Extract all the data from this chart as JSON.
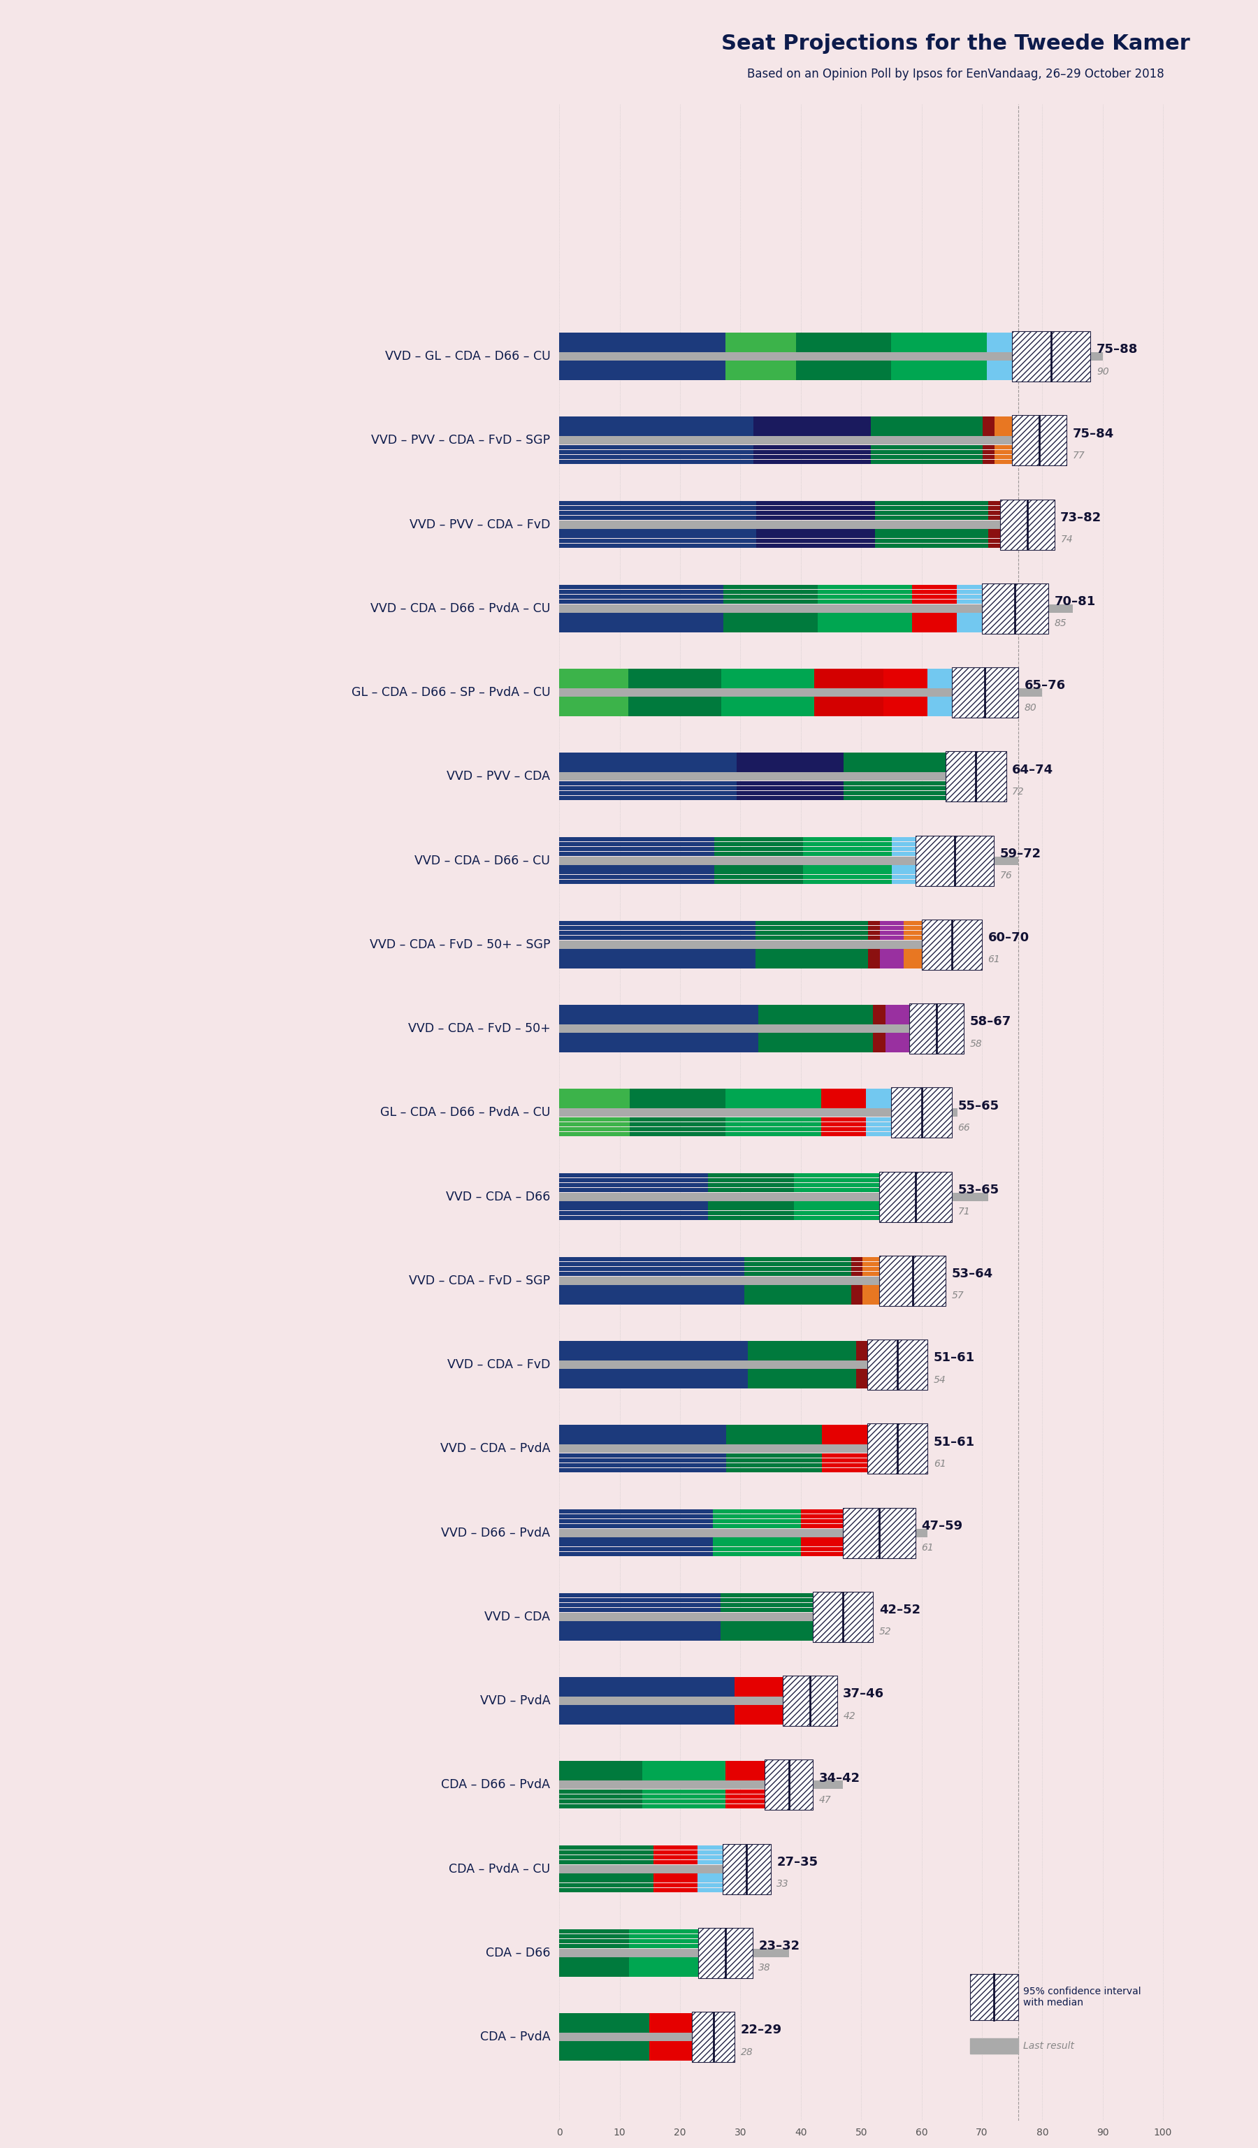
{
  "title": "Seat Projections for the Tweede Kamer",
  "subtitle": "Based on an Opinion Poll by Ipsos for EenVandaag, 26–29 October 2018",
  "background_color": "#f5e6e8",
  "coalitions": [
    {
      "label": "VVD – GL – CDA – D66 – CU",
      "underline": false,
      "low": 75,
      "high": 88,
      "last": 90,
      "parties": [
        "VVD",
        "GL",
        "CDA",
        "D66",
        "CU"
      ],
      "party_seats": [
        33,
        14,
        19,
        19,
        5
      ]
    },
    {
      "label": "VVD – PVV – CDA – FvD – SGP",
      "underline": false,
      "low": 75,
      "high": 84,
      "last": 77,
      "parties": [
        "VVD",
        "PVV",
        "CDA",
        "FvD",
        "SGP"
      ],
      "party_seats": [
        33,
        20,
        19,
        2,
        3
      ]
    },
    {
      "label": "VVD – PVV – CDA – FvD",
      "underline": false,
      "low": 73,
      "high": 82,
      "last": 74,
      "parties": [
        "VVD",
        "PVV",
        "CDA",
        "FvD"
      ],
      "party_seats": [
        33,
        20,
        19,
        2
      ]
    },
    {
      "label": "VVD – CDA – D66 – PvdA – CU",
      "underline": false,
      "low": 70,
      "high": 81,
      "last": 85,
      "parties": [
        "VVD",
        "CDA",
        "D66",
        "PvdA",
        "CU"
      ],
      "party_seats": [
        33,
        19,
        19,
        9,
        5
      ]
    },
    {
      "label": "GL – CDA – D66 – SP – PvdA – CU",
      "underline": false,
      "low": 65,
      "high": 76,
      "last": 80,
      "parties": [
        "GL",
        "CDA",
        "D66",
        "SP",
        "PvdA",
        "CU"
      ],
      "party_seats": [
        14,
        19,
        19,
        14,
        9,
        5
      ]
    },
    {
      "label": "VVD – PVV – CDA",
      "underline": false,
      "low": 64,
      "high": 74,
      "last": 72,
      "parties": [
        "VVD",
        "PVV",
        "CDA"
      ],
      "party_seats": [
        33,
        20,
        19
      ]
    },
    {
      "label": "VVD – CDA – D66 – CU",
      "underline": true,
      "low": 59,
      "high": 72,
      "last": 76,
      "parties": [
        "VVD",
        "CDA",
        "D66",
        "CU"
      ],
      "party_seats": [
        33,
        19,
        19,
        5
      ]
    },
    {
      "label": "VVD – CDA – FvD – 50+ – SGP",
      "underline": false,
      "low": 60,
      "high": 70,
      "last": 61,
      "parties": [
        "VVD",
        "CDA",
        "FvD",
        "50+",
        "SGP"
      ],
      "party_seats": [
        33,
        19,
        2,
        4,
        3
      ]
    },
    {
      "label": "VVD – CDA – FvD – 50+",
      "underline": false,
      "low": 58,
      "high": 67,
      "last": 58,
      "parties": [
        "VVD",
        "CDA",
        "FvD",
        "50+"
      ],
      "party_seats": [
        33,
        19,
        2,
        4
      ]
    },
    {
      "label": "GL – CDA – D66 – PvdA – CU",
      "underline": false,
      "low": 55,
      "high": 65,
      "last": 66,
      "parties": [
        "GL",
        "CDA",
        "D66",
        "PvdA",
        "CU"
      ],
      "party_seats": [
        14,
        19,
        19,
        9,
        5
      ]
    },
    {
      "label": "VVD – CDA – D66",
      "underline": false,
      "low": 53,
      "high": 65,
      "last": 71,
      "parties": [
        "VVD",
        "CDA",
        "D66"
      ],
      "party_seats": [
        33,
        19,
        19
      ]
    },
    {
      "label": "VVD – CDA – FvD – SGP",
      "underline": false,
      "low": 53,
      "high": 64,
      "last": 57,
      "parties": [
        "VVD",
        "CDA",
        "FvD",
        "SGP"
      ],
      "party_seats": [
        33,
        19,
        2,
        3
      ]
    },
    {
      "label": "VVD – CDA – FvD",
      "underline": false,
      "low": 51,
      "high": 61,
      "last": 54,
      "parties": [
        "VVD",
        "CDA",
        "FvD"
      ],
      "party_seats": [
        33,
        19,
        2
      ]
    },
    {
      "label": "VVD – CDA – PvdA",
      "underline": false,
      "low": 51,
      "high": 61,
      "last": 61,
      "parties": [
        "VVD",
        "CDA",
        "PvdA"
      ],
      "party_seats": [
        33,
        19,
        9
      ]
    },
    {
      "label": "VVD – D66 – PvdA",
      "underline": false,
      "low": 47,
      "high": 59,
      "last": 61,
      "parties": [
        "VVD",
        "D66",
        "PvdA"
      ],
      "party_seats": [
        33,
        19,
        9
      ]
    },
    {
      "label": "VVD – CDA",
      "underline": false,
      "low": 42,
      "high": 52,
      "last": 52,
      "parties": [
        "VVD",
        "CDA"
      ],
      "party_seats": [
        33,
        19
      ]
    },
    {
      "label": "VVD – PvdA",
      "underline": false,
      "low": 37,
      "high": 46,
      "last": 42,
      "parties": [
        "VVD",
        "PvdA"
      ],
      "party_seats": [
        33,
        9
      ]
    },
    {
      "label": "CDA – D66 – PvdA",
      "underline": false,
      "low": 34,
      "high": 42,
      "last": 47,
      "parties": [
        "CDA",
        "D66",
        "PvdA"
      ],
      "party_seats": [
        19,
        19,
        9
      ]
    },
    {
      "label": "CDA – PvdA – CU",
      "underline": false,
      "low": 27,
      "high": 35,
      "last": 33,
      "parties": [
        "CDA",
        "PvdA",
        "CU"
      ],
      "party_seats": [
        19,
        9,
        5
      ]
    },
    {
      "label": "CDA – D66",
      "underline": false,
      "low": 23,
      "high": 32,
      "last": 38,
      "parties": [
        "CDA",
        "D66"
      ],
      "party_seats": [
        19,
        19
      ]
    },
    {
      "label": "CDA – PvdA",
      "underline": false,
      "low": 22,
      "high": 29,
      "last": 28,
      "parties": [
        "CDA",
        "PvdA"
      ],
      "party_seats": [
        19,
        9
      ]
    }
  ],
  "party_colors": {
    "VVD": "#1c3a7c",
    "GL": "#3cb34a",
    "CDA": "#007a3d",
    "D66": "#00a651",
    "CU": "#72c8f0",
    "PVV": "#1a1a5e",
    "FvD": "#8b1010",
    "SGP": "#e87722",
    "SP": "#d40000",
    "PvdA": "#e50000",
    "50+": "#9930a0"
  },
  "majority_line": 76,
  "xmax": 100,
  "n_sub_bars": 8
}
